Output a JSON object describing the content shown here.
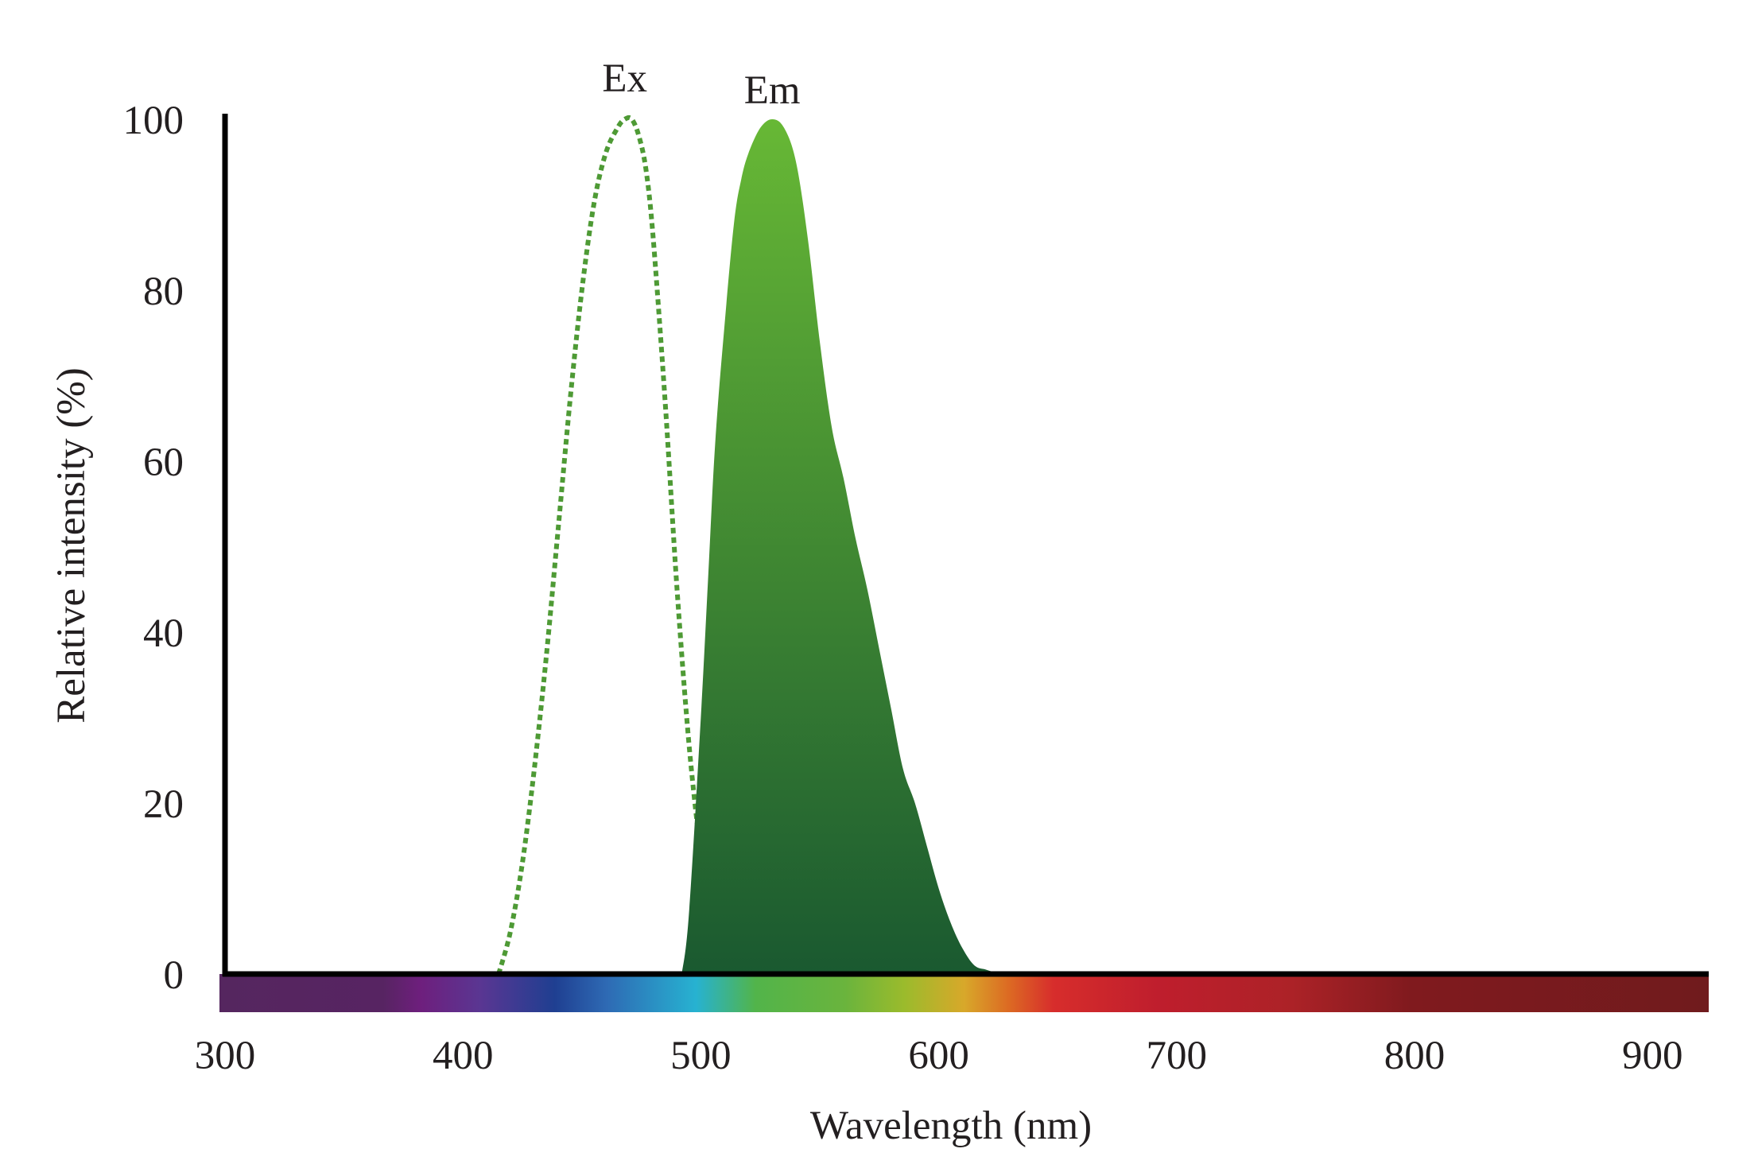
{
  "chart_data": {
    "type": "area",
    "xlabel": "Wavelength (nm)",
    "ylabel": "Relative intensity (%)",
    "xlim": [
      300,
      925
    ],
    "ylim": [
      0,
      100
    ],
    "x_ticks": [
      "300",
      "400",
      "500",
      "600",
      "700",
      "800",
      "900"
    ],
    "y_ticks": [
      "0",
      "20",
      "40",
      "60",
      "80",
      "100"
    ],
    "grid": false,
    "legend": "none",
    "series": [
      {
        "name": "Ex",
        "style": "dotted",
        "color": "#4e9a35",
        "x": [
          415,
          420,
          425,
          430,
          435,
          440,
          445,
          450,
          455,
          460,
          465,
          468,
          471,
          474,
          477,
          480,
          485,
          490,
          495,
          500,
          502,
          505,
          508,
          511,
          514
        ],
        "y": [
          0,
          5,
          13,
          24,
          37,
          52,
          67,
          80,
          90,
          96,
          99,
          100,
          100,
          98,
          94,
          86,
          67,
          45,
          27,
          14,
          11,
          8,
          5,
          2,
          0
        ]
      },
      {
        "name": "Em",
        "style": "filled",
        "color_top": "#67b835",
        "color_bottom": "#1a5930",
        "x": [
          492,
          495,
          500,
          503,
          506,
          510,
          514,
          517,
          520,
          525,
          530,
          535,
          540,
          545,
          550,
          555,
          560,
          565,
          570,
          575,
          580,
          585,
          590,
          595,
          600,
          605,
          610,
          615,
          620,
          625,
          630
        ],
        "y": [
          0,
          7,
          30,
          46,
          62,
          76,
          88,
          93,
          96,
          99,
          100,
          99,
          95,
          86,
          74,
          64,
          58,
          51,
          45,
          38,
          31,
          24,
          20,
          15,
          10,
          6,
          3,
          1,
          0.5,
          0.1,
          0
        ]
      }
    ]
  }
}
